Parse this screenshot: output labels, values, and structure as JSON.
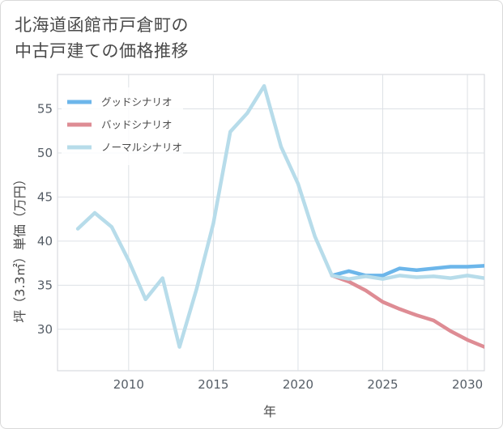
{
  "title_line1": "北海道函館市戸倉町の",
  "title_line2": "中古戸建ての価格推移",
  "chart_data": {
    "type": "line",
    "title": "北海道函館市戸倉町の中古戸建ての価格推移",
    "xlabel": "年",
    "ylabel": "坪（3.3㎡）単価（万円）",
    "xlim": [
      2005.8,
      2031.0
    ],
    "ylim": [
      25.3,
      58.9
    ],
    "xticks": [
      2010,
      2015,
      2020,
      2025,
      2030
    ],
    "yticks": [
      30,
      35,
      40,
      45,
      50,
      55
    ],
    "legend_position": "top-left",
    "grid": true,
    "series": [
      {
        "name": "グッドシナリオ",
        "color": "#6cb6ea",
        "x": [
          2022,
          2023,
          2024,
          2025,
          2026,
          2027,
          2028,
          2029,
          2030,
          2031
        ],
        "y": [
          36.1,
          36.6,
          36.1,
          36.1,
          36.9,
          36.7,
          36.9,
          37.1,
          37.1,
          37.2
        ]
      },
      {
        "name": "バッドシナリオ",
        "color": "#de8c94",
        "x": [
          2022,
          2023,
          2024,
          2025,
          2026,
          2027,
          2028,
          2029,
          2030,
          2031
        ],
        "y": [
          36.1,
          35.4,
          34.4,
          33.1,
          32.3,
          31.6,
          31.0,
          29.8,
          28.8,
          28.0
        ]
      },
      {
        "name": "ノーマルシナリオ",
        "color": "#b7dcea",
        "x": [
          2007,
          2008,
          2009,
          2010,
          2011,
          2012,
          2013,
          2014,
          2015,
          2016,
          2017,
          2018,
          2019,
          2020,
          2021,
          2022,
          2023,
          2024,
          2025,
          2026,
          2027,
          2028,
          2029,
          2030,
          2031
        ],
        "y": [
          41.4,
          43.2,
          41.6,
          37.8,
          33.4,
          35.8,
          28.0,
          34.5,
          42.0,
          52.4,
          54.5,
          57.6,
          50.7,
          46.5,
          40.5,
          36.1,
          35.7,
          36.0,
          35.7,
          36.1,
          35.9,
          36.0,
          35.8,
          36.1,
          35.8
        ]
      }
    ]
  }
}
